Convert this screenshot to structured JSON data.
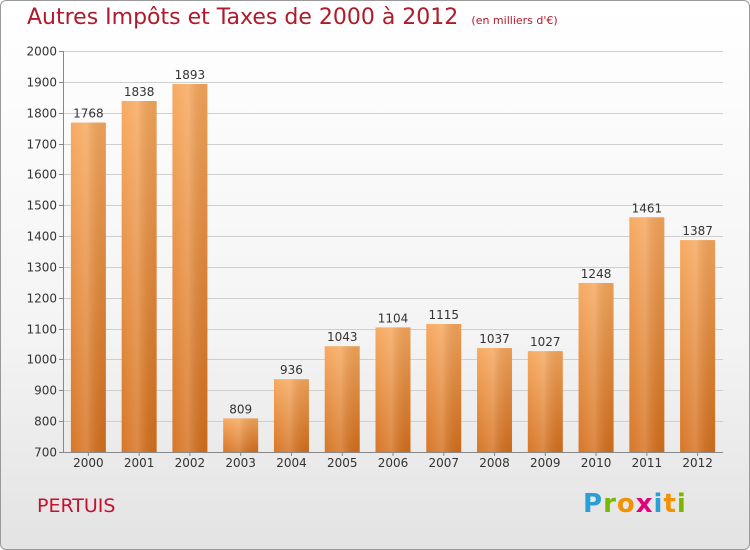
{
  "header": {
    "title": "Autres Impôts et Taxes de 2000 à 2012",
    "unit_note": "(en milliers d'€)"
  },
  "footer": {
    "city": "PERTUIS",
    "brand": "Proxiti",
    "brand_letters": [
      "P",
      "r",
      "o",
      "x",
      "i",
      "t",
      "i"
    ],
    "brand_colors": [
      "#2a9fd6",
      "#7ab800",
      "#f39200",
      "#e4007c",
      "#2a9fd6",
      "#f39200",
      "#7ab800"
    ]
  },
  "colors": {
    "title": "#b01a2a",
    "bar_light": "#f6a65a",
    "bar_dark": "#d56f1c",
    "grid": "#cfcfcf",
    "axis_text": "#333333"
  },
  "chart_data": {
    "type": "bar",
    "title": "Autres Impôts et Taxes de 2000 à 2012",
    "subtitle": "(en milliers d'€)",
    "xlabel": "",
    "ylabel": "",
    "categories": [
      "2000",
      "2001",
      "2002",
      "2003",
      "2004",
      "2005",
      "2006",
      "2007",
      "2008",
      "2009",
      "2010",
      "2011",
      "2012"
    ],
    "values": [
      1768,
      1838,
      1893,
      809,
      936,
      1043,
      1104,
      1115,
      1037,
      1027,
      1248,
      1461,
      1387
    ],
    "ylim": [
      700,
      2000
    ],
    "yticks": [
      700,
      800,
      900,
      1000,
      1100,
      1200,
      1300,
      1400,
      1500,
      1600,
      1700,
      1800,
      1900,
      2000
    ],
    "grid": true,
    "data_labels": true,
    "legend": "none"
  }
}
